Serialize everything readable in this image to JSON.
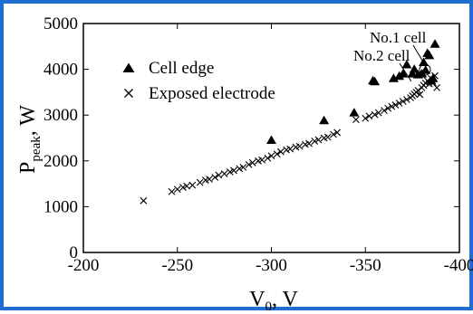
{
  "chart_data": {
    "type": "scatter",
    "xlabel": {
      "main": "V",
      "sub": "0",
      "unit": ",  V"
    },
    "ylabel": {
      "main": "P",
      "sub": "peak",
      "unit": ",  W"
    },
    "xlim": [
      -200,
      -400
    ],
    "ylim": [
      0,
      5000
    ],
    "x_ticks": [
      -200,
      -250,
      -300,
      -350,
      -400
    ],
    "y_ticks": [
      0,
      1000,
      2000,
      3000,
      4000,
      5000
    ],
    "x_tick_labels": [
      "-200",
      "-250",
      "-300",
      "-350",
      "-400"
    ],
    "y_tick_labels": [
      "0",
      "1000",
      "2000",
      "3000",
      "4000",
      "5000"
    ],
    "grid": false,
    "legend_position": "top-left",
    "series": [
      {
        "name": "Cell edge",
        "marker": "triangle",
        "points": [
          [
            -300,
            2450
          ],
          [
            -328,
            2880
          ],
          [
            -344,
            3050
          ],
          [
            -354,
            3750
          ],
          [
            -355,
            3730
          ],
          [
            -365,
            3800
          ],
          [
            -368,
            3850
          ],
          [
            -370,
            3900
          ],
          [
            -372,
            4100
          ],
          [
            -375,
            3900
          ],
          [
            -376,
            4000
          ],
          [
            -378,
            3880
          ],
          [
            -380,
            3900
          ],
          [
            -381,
            4150
          ],
          [
            -382,
            3980
          ],
          [
            -383,
            4350
          ],
          [
            -384,
            4300
          ],
          [
            -385,
            3750
          ],
          [
            -386,
            3800
          ],
          [
            -387,
            4550
          ]
        ]
      },
      {
        "name": "Exposed electrode",
        "marker": "x",
        "points": [
          [
            -232,
            1130
          ],
          [
            -247,
            1330
          ],
          [
            -250,
            1380
          ],
          [
            -253,
            1420
          ],
          [
            -255,
            1450
          ],
          [
            -258,
            1470
          ],
          [
            -262,
            1530
          ],
          [
            -265,
            1580
          ],
          [
            -267,
            1600
          ],
          [
            -270,
            1640
          ],
          [
            -272,
            1690
          ],
          [
            -275,
            1720
          ],
          [
            -278,
            1760
          ],
          [
            -280,
            1790
          ],
          [
            -283,
            1830
          ],
          [
            -285,
            1860
          ],
          [
            -288,
            1920
          ],
          [
            -290,
            1960
          ],
          [
            -293,
            2000
          ],
          [
            -295,
            2020
          ],
          [
            -298,
            2060
          ],
          [
            -300,
            2110
          ],
          [
            -303,
            2150
          ],
          [
            -305,
            2200
          ],
          [
            -308,
            2240
          ],
          [
            -310,
            2260
          ],
          [
            -313,
            2300
          ],
          [
            -315,
            2320
          ],
          [
            -318,
            2360
          ],
          [
            -320,
            2380
          ],
          [
            -323,
            2430
          ],
          [
            -325,
            2460
          ],
          [
            -328,
            2500
          ],
          [
            -330,
            2520
          ],
          [
            -333,
            2580
          ],
          [
            -335,
            2620
          ],
          [
            -345,
            2900
          ],
          [
            -350,
            2930
          ],
          [
            -352,
            2980
          ],
          [
            -355,
            3010
          ],
          [
            -357,
            3050
          ],
          [
            -360,
            3100
          ],
          [
            -362,
            3150
          ],
          [
            -364,
            3190
          ],
          [
            -366,
            3220
          ],
          [
            -368,
            3260
          ],
          [
            -370,
            3300
          ],
          [
            -372,
            3340
          ],
          [
            -374,
            3380
          ],
          [
            -375,
            3420
          ],
          [
            -376,
            3460
          ],
          [
            -377,
            3500
          ],
          [
            -378,
            3540
          ],
          [
            -379,
            3450
          ],
          [
            -380,
            3600
          ],
          [
            -381,
            3650
          ],
          [
            -382,
            3700
          ],
          [
            -383,
            3750
          ],
          [
            -384,
            3680
          ],
          [
            -385,
            3800
          ],
          [
            -386,
            3700
          ],
          [
            -387,
            3860
          ],
          [
            -388,
            3600
          ]
        ]
      }
    ],
    "annotations": [
      {
        "text": "No.1 cell",
        "target": [
          -381,
          4240
        ],
        "circle": true
      },
      {
        "text": "No.2 cell",
        "target": [
          -375,
          3900
        ],
        "circle": false
      }
    ]
  }
}
